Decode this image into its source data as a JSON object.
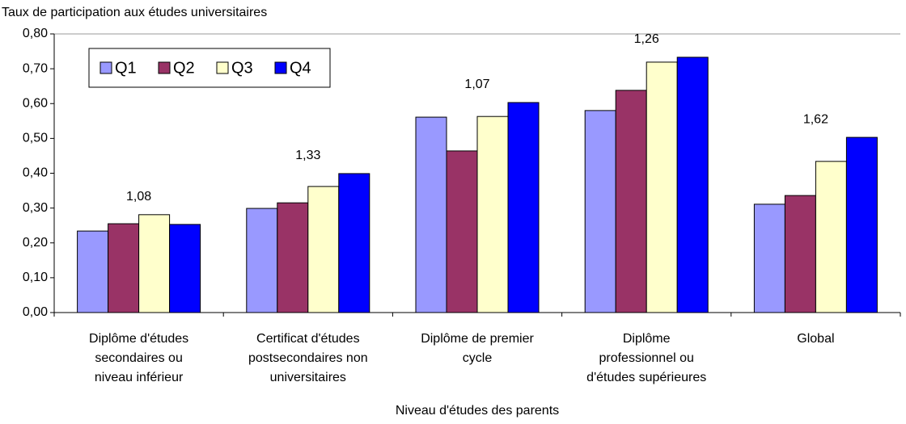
{
  "chart_data": {
    "type": "bar",
    "title": "Taux de participation aux études universitaires",
    "x_label": "Niveau d'études des parents",
    "categories": [
      [
        "Diplôme d'études",
        "secondaires ou",
        "niveau inférieur"
      ],
      [
        "Certificat d'études",
        "postsecondaires non",
        "universitaires"
      ],
      [
        "Diplôme de premier",
        "cycle"
      ],
      [
        "Diplôme",
        "professionnel ou",
        "d'études supérieures"
      ],
      [
        "Global"
      ]
    ],
    "series": [
      {
        "name": "Q1",
        "color": "#9999ff",
        "values": [
          0.234,
          0.299,
          0.561,
          0.58,
          0.311
        ]
      },
      {
        "name": "Q2",
        "color": "#993366",
        "values": [
          0.255,
          0.315,
          0.464,
          0.638,
          0.336
        ]
      },
      {
        "name": "Q3",
        "color": "#ffffcc",
        "values": [
          0.281,
          0.362,
          0.563,
          0.719,
          0.434
        ]
      },
      {
        "name": "Q4",
        "color": "#0000ff",
        "values": [
          0.253,
          0.399,
          0.603,
          0.733,
          0.503
        ]
      }
    ],
    "annotations": [
      "1,08",
      "1,33",
      "1,07",
      "1,26",
      "1,62"
    ],
    "ylim": [
      0,
      0.8
    ],
    "yticks": [
      {
        "value": 0,
        "label": "0,00"
      },
      {
        "value": 0.1,
        "label": "0,10"
      },
      {
        "value": 0.2,
        "label": "0,20"
      },
      {
        "value": 0.3,
        "label": "0,30"
      },
      {
        "value": 0.4,
        "label": "0,40"
      },
      {
        "value": 0.5,
        "label": "0,50"
      },
      {
        "value": 0.6,
        "label": "0,60"
      },
      {
        "value": 0.7,
        "label": "0,70"
      },
      {
        "value": 0.8,
        "label": "0,80"
      }
    ],
    "grid": false,
    "legend": "upper left"
  }
}
